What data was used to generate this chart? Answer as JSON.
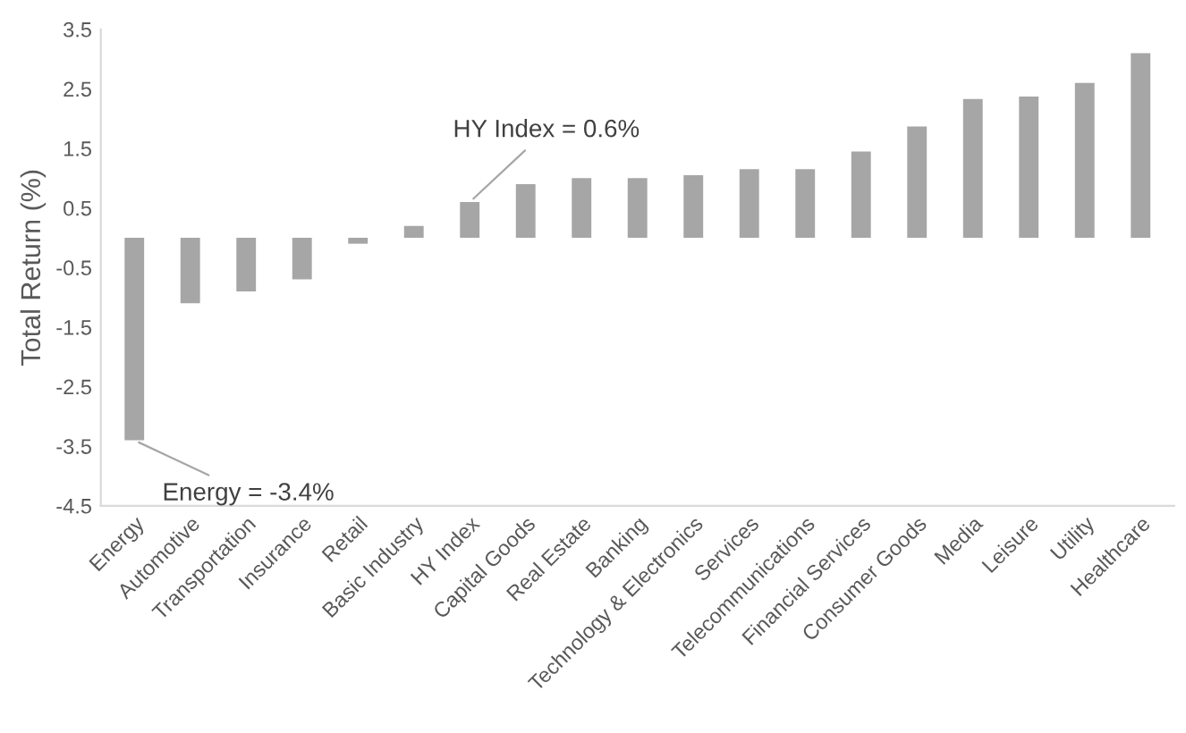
{
  "chart_data": {
    "type": "bar",
    "ylabel": "Total Return (%)",
    "categories": [
      "Energy",
      "Automotive",
      "Transportation",
      "Insurance",
      "Retail",
      "Basic Industry",
      "HY Index",
      "Capital Goods",
      "Real Estate",
      "Banking",
      "Technology & Electronics",
      "Services",
      "Telecommunications",
      "Financial Services",
      "Consumer Goods",
      "Media",
      "Leisure",
      "Utility",
      "Healthcare"
    ],
    "values": [
      -3.4,
      -1.1,
      -0.9,
      -0.7,
      -0.1,
      0.2,
      0.6,
      0.9,
      1.0,
      1.0,
      1.05,
      1.15,
      1.15,
      1.45,
      1.87,
      2.33,
      2.37,
      2.6,
      3.1
    ],
    "color": "#a6a6a6",
    "ylim": [
      -4.5,
      3.5
    ],
    "yticks": [
      -4.5,
      -3.5,
      -2.5,
      -1.5,
      -0.5,
      0.5,
      1.5,
      2.5,
      3.5
    ],
    "annotations": [
      {
        "text": "HY Index = 0.6%",
        "x": "HY Index",
        "y": 0.6
      },
      {
        "text": "Energy = -3.4%",
        "x": "Energy",
        "y": -3.4
      }
    ],
    "grid": false,
    "legend": false
  }
}
